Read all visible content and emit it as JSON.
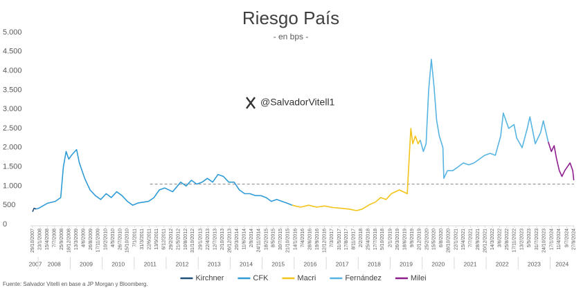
{
  "chart_data": {
    "type": "line",
    "title": "Riesgo País",
    "subtitle": "- en bps -",
    "watermark": "@SalvadorVitell1",
    "source": "Fuente: Salvador Vitelli en base a JP Morgan y Bloomberg.",
    "ylim": [
      0,
      5000
    ],
    "yticks": [
      {
        "value": 0,
        "label": "0"
      },
      {
        "value": 500,
        "label": "500"
      },
      {
        "value": 1000,
        "label": "1.000"
      },
      {
        "value": 1500,
        "label": "1.500"
      },
      {
        "value": 2000,
        "label": "2.000"
      },
      {
        "value": 2500,
        "label": "2.500"
      },
      {
        "value": 3000,
        "label": "3.000"
      },
      {
        "value": 3500,
        "label": "3.500"
      },
      {
        "value": 4000,
        "label": "4.000"
      },
      {
        "value": 4500,
        "label": "4.500"
      },
      {
        "value": 5000,
        "label": "5.000"
      }
    ],
    "xlim": [
      "29/10/2007",
      "30/9/2024"
    ],
    "xticks": [
      "29/10/2007",
      "23/1/2008",
      "15/4/2008",
      "7/7/2008",
      "25/9/2008",
      "18/12/2008",
      "13/3/2009",
      "4/6/2009",
      "26/8/2009",
      "17/11/2009",
      "10/2/2010",
      "4/5/2010",
      "26/7/2010",
      "15/10/2010",
      "7/1/2011",
      "31/3/2011",
      "22/6/2011",
      "13/9/2011",
      "6/12/2011",
      "29/2/2012",
      "21/5/2012",
      "10/8/2012",
      "31/10/2012",
      "29/1/2013",
      "22/4/2013",
      "12/7/2013",
      "2/10/2013",
      "26/12/2013",
      "20/3/2014",
      "11/6/2014",
      "2/9/2014",
      "24/11/2014",
      "18/2/2015",
      "8/5/2015",
      "30/7/2015",
      "21/10/2015",
      "14/1/2016",
      "7/4/2016",
      "28/6/2016",
      "19/9/2016",
      "12/12/2016",
      "7/3/2017",
      "31/5/2017",
      "17/8/2017",
      "8/11/2017",
      "2/2/2018",
      "25/4/2018",
      "17/7/2018",
      "5/10/2018",
      "2/1/2019",
      "26/3/2019",
      "18/6/2019",
      "9/9/2019",
      "2/12/2019",
      "25/2/2020",
      "15/5/2020",
      "6/8/2020",
      "28/10/2020",
      "22/1/2021",
      "15/4/2021",
      "7/7/2021",
      "28/9/2021",
      "20/12/2021",
      "14/3/2022",
      "3/6/2022",
      "25/8/2022",
      "17/11/2022",
      "13/2/2023",
      "5/5/2023",
      "31/7/2023",
      "24/10/2023",
      "17/1/2024",
      "11/4/2024",
      "9/7/2024",
      "27/9/2024"
    ],
    "year_labels": [
      2007,
      2008,
      2009,
      2010,
      2011,
      2012,
      2013,
      2014,
      2015,
      2016,
      2017,
      2018,
      2019,
      2020,
      2021,
      2022,
      2023,
      2024
    ],
    "reference_line": {
      "value": 1050,
      "start": "1/7/2011",
      "style": "dashed"
    },
    "series": [
      {
        "name": "Kirchner",
        "color": "#1f4e79",
        "x": [
          "29/10/2007",
          "15/11/2007",
          "10/12/2007"
        ],
        "values": [
          330,
          420,
          400
        ]
      },
      {
        "name": "CFK",
        "color": "#2e9bd6",
        "x": [
          "10/12/2007",
          "15/1/2008",
          "15/4/2008",
          "15/7/2008",
          "15/9/2008",
          "15/10/2008",
          "15/11/2008",
          "15/12/2008",
          "15/1/2009",
          "15/3/2009",
          "15/4/2009",
          "15/6/2009",
          "15/8/2009",
          "15/10/2009",
          "15/12/2009",
          "15/2/2010",
          "15/4/2010",
          "15/6/2010",
          "15/8/2010",
          "15/10/2010",
          "15/12/2010",
          "15/2/2011",
          "15/4/2011",
          "15/6/2011",
          "15/8/2011",
          "15/10/2011",
          "15/12/2011",
          "15/3/2012",
          "15/6/2012",
          "15/8/2012",
          "15/10/2012",
          "15/12/2012",
          "15/2/2013",
          "15/4/2013",
          "15/6/2013",
          "15/8/2013",
          "15/10/2013",
          "15/12/2013",
          "15/2/2014",
          "15/4/2014",
          "15/6/2014",
          "15/8/2014",
          "15/10/2014",
          "15/12/2014",
          "15/2/2015",
          "15/4/2015",
          "15/6/2015",
          "15/8/2015",
          "15/10/2015",
          "10/12/2015"
        ],
        "values": [
          400,
          430,
          550,
          600,
          700,
          1500,
          1900,
          1700,
          1800,
          1950,
          1600,
          1200,
          900,
          750,
          650,
          800,
          700,
          850,
          750,
          600,
          500,
          560,
          580,
          600,
          700,
          900,
          950,
          850,
          1100,
          1000,
          1150,
          1050,
          1100,
          1200,
          1100,
          1300,
          1250,
          1100,
          1100,
          900,
          800,
          800,
          750,
          750,
          700,
          600,
          650,
          600,
          550,
          500
        ]
      },
      {
        "name": "Macri",
        "color": "#f2c318",
        "x": [
          "10/12/2015",
          "15/1/2016",
          "15/3/2016",
          "15/6/2016",
          "15/9/2016",
          "15/12/2016",
          "15/3/2017",
          "15/6/2017",
          "15/9/2017",
          "15/12/2017",
          "15/2/2018",
          "15/5/2018",
          "15/7/2018",
          "15/9/2018",
          "15/11/2018",
          "15/1/2019",
          "15/4/2019",
          "15/7/2019",
          "12/8/2019",
          "25/8/2019",
          "15/9/2019",
          "15/10/2019",
          "15/11/2019",
          "10/12/2019"
        ],
        "values": [
          500,
          480,
          450,
          500,
          450,
          480,
          440,
          420,
          400,
          360,
          400,
          520,
          580,
          700,
          650,
          800,
          900,
          800,
          2000,
          2500,
          2100,
          2300,
          2100,
          2200
        ]
      },
      {
        "name": "Fernández",
        "color": "#56b4e3",
        "x": [
          "10/12/2019",
          "15/1/2020",
          "15/2/2020",
          "15/3/2020",
          "15/4/2020",
          "15/5/2020",
          "15/6/2020",
          "15/7/2020",
          "25/8/2020",
          "4/9/2020",
          "15/10/2020",
          "15/12/2020",
          "15/2/2021",
          "15/4/2021",
          "15/6/2021",
          "15/8/2021",
          "15/10/2021",
          "15/12/2021",
          "15/2/2022",
          "15/4/2022",
          "15/6/2022",
          "15/7/2022",
          "15/9/2022",
          "15/11/2022",
          "15/12/2022",
          "15/2/2023",
          "15/4/2023",
          "15/5/2023",
          "15/7/2023",
          "15/9/2023",
          "15/10/2023",
          "10/12/2023"
        ],
        "values": [
          2200,
          1900,
          2100,
          3500,
          4300,
          3600,
          2700,
          2300,
          2000,
          1200,
          1400,
          1400,
          1500,
          1600,
          1550,
          1600,
          1700,
          1800,
          1850,
          1800,
          2300,
          2900,
          2500,
          2600,
          2250,
          2000,
          2500,
          2800,
          2100,
          2400,
          2700,
          2150
        ]
      },
      {
        "name": "Milei",
        "color": "#8e1b8e",
        "x": [
          "10/12/2023",
          "15/1/2024",
          "15/2/2024",
          "15/3/2024",
          "15/4/2024",
          "15/5/2024",
          "15/6/2024",
          "15/7/2024",
          "15/8/2024",
          "15/9/2024",
          "27/9/2024"
        ],
        "values": [
          2150,
          1900,
          2050,
          1700,
          1400,
          1250,
          1400,
          1500,
          1600,
          1400,
          1150
        ]
      }
    ]
  }
}
